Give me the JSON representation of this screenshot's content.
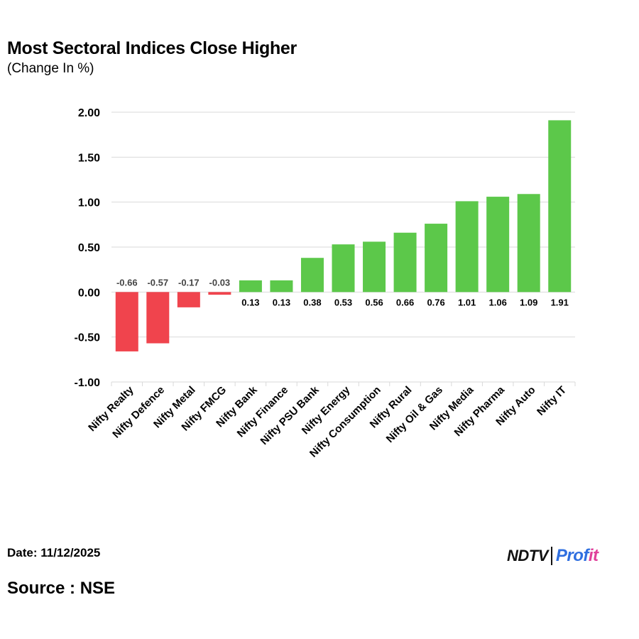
{
  "title": "Most Sectoral Indices Close Higher",
  "subtitle": "(Change In %)",
  "footer": {
    "date": "Date: 11/12/2025",
    "source": "Source : NSE",
    "logo": {
      "brand": "NDTV",
      "product_main": "Prof",
      "product_accent": "it"
    }
  },
  "colors": {
    "positive": "#5cc84a",
    "negative": "#f0444d",
    "grid": "#d9d9d9",
    "axis_text": "#000000",
    "label_text": "#000000",
    "neg_label_text": "#444444"
  },
  "chart_data": {
    "type": "bar",
    "title": "Most Sectoral Indices Close Higher",
    "subtitle": "(Change In %)",
    "categories": [
      "Nifty Realty",
      "Nifty Defence",
      "Nifty Metal",
      "Nifty FMCG",
      "Nifty Bank",
      "Nifty Finance",
      "Nifty PSU Bank",
      "Nifty Energy",
      "Nifty Consumption",
      "Nifty Rural",
      "Nifty Oil & Gas",
      "Nifty Media",
      "Nifty Pharma",
      "Nifty Auto",
      "Nifty IT"
    ],
    "values": [
      -0.66,
      -0.57,
      -0.17,
      -0.03,
      0.13,
      0.13,
      0.38,
      0.53,
      0.56,
      0.66,
      0.76,
      1.01,
      1.06,
      1.09,
      1.91
    ],
    "value_labels": [
      "-0.66",
      "-0.57",
      "-0.17",
      "-0.03",
      "0.13",
      "0.13",
      "0.38",
      "0.53",
      "0.56",
      "0.66",
      "0.76",
      "1.01",
      "1.06",
      "1.09",
      "1.91"
    ],
    "ylim": [
      -1.0,
      2.0
    ],
    "yticks": [
      2.0,
      1.5,
      1.0,
      0.5,
      0.0,
      -0.5,
      -1.0
    ],
    "ytick_labels": [
      "2.00",
      "1.50",
      "1.00",
      "0.50",
      "0.00",
      "-0.50",
      "-1.00"
    ],
    "xlabel": "",
    "ylabel": "",
    "grid": true,
    "legend": "none"
  }
}
